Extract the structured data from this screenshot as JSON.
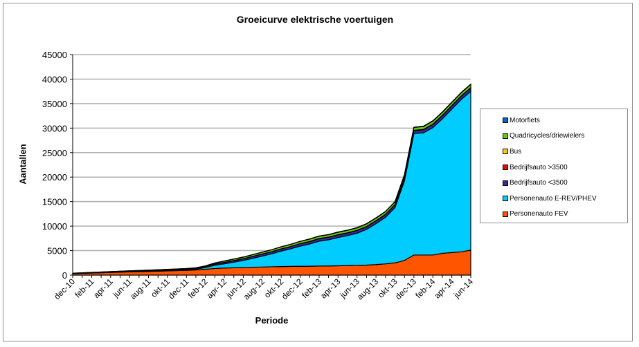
{
  "chart_data": {
    "type": "area",
    "stacked": true,
    "title": "Groeicurve elektrische voertuigen",
    "xlabel": "Periode",
    "ylabel": "Aantallen",
    "ylim": [
      0,
      45000
    ],
    "yticks": [
      0,
      5000,
      10000,
      15000,
      20000,
      25000,
      30000,
      35000,
      40000,
      45000
    ],
    "grid": "horizontal",
    "legend_position": "right",
    "categories": [
      "dec-10",
      "jan-11",
      "feb-11",
      "mrt-11",
      "apr-11",
      "mei-11",
      "jun-11",
      "jul-11",
      "aug-11",
      "sep-11",
      "okt-11",
      "nov-11",
      "dec-11",
      "jan-12",
      "feb-12",
      "mrt-12",
      "apr-12",
      "mei-12",
      "jun-12",
      "jul-12",
      "aug-12",
      "sep-12",
      "okt-12",
      "nov-12",
      "dec-12",
      "jan-13",
      "feb-13",
      "mrt-13",
      "apr-13",
      "mei-13",
      "jun-13",
      "jul-13",
      "aug-13",
      "sep-13",
      "okt-13",
      "nov-13",
      "dec-13",
      "jan-14",
      "feb-14",
      "mrt-14",
      "apr-14",
      "mei-14",
      "jun-14"
    ],
    "tick_labels": [
      "dec-10",
      "feb-11",
      "apr-11",
      "jun-11",
      "aug-11",
      "okt-11",
      "dec-11",
      "feb-12",
      "apr-12",
      "jun-12",
      "aug-12",
      "okt-12",
      "dec-12",
      "feb-13",
      "apr-13",
      "jun-13",
      "aug-13",
      "okt-13",
      "dec-13",
      "feb-14",
      "apr-14",
      "jun-14"
    ],
    "series": [
      {
        "name": "Personenauto FEV",
        "color": "#FF5500",
        "values": [
          300,
          360,
          420,
          480,
          540,
          600,
          660,
          710,
          760,
          810,
          860,
          910,
          960,
          1050,
          1200,
          1350,
          1450,
          1500,
          1550,
          1600,
          1650,
          1700,
          1750,
          1780,
          1800,
          1820,
          1850,
          1870,
          1900,
          1950,
          2000,
          2050,
          2150,
          2300,
          2500,
          3000,
          4100,
          4100,
          4100,
          4450,
          4600,
          4750,
          5100
        ]
      },
      {
        "name": "Personenauto E-REV/PHEV",
        "color": "#00CCFF",
        "values": [
          10,
          20,
          30,
          40,
          50,
          60,
          70,
          80,
          90,
          110,
          130,
          150,
          180,
          165,
          345,
          675,
          855,
          1145,
          1435,
          1835,
          2235,
          2645,
          3155,
          3585,
          4125,
          4530,
          5080,
          5340,
          5790,
          6120,
          6550,
          7280,
          8360,
          9490,
          11270,
          16230,
          24790,
          24930,
          26010,
          27440,
          29270,
          31100,
          32410
        ]
      },
      {
        "name": "Bedrijfsauto <3500",
        "color": "#3A2A99",
        "values": [
          30,
          35,
          40,
          45,
          50,
          55,
          60,
          65,
          70,
          75,
          80,
          85,
          90,
          110,
          150,
          220,
          280,
          310,
          340,
          370,
          400,
          420,
          440,
          460,
          480,
          490,
          500,
          510,
          520,
          530,
          540,
          550,
          560,
          570,
          580,
          600,
          620,
          630,
          640,
          650,
          660,
          670,
          690
        ]
      },
      {
        "name": "Bedrijfsauto >3500",
        "color": "#FF0000",
        "values": [
          5,
          5,
          5,
          5,
          5,
          5,
          5,
          5,
          5,
          5,
          5,
          5,
          5,
          10,
          10,
          10,
          10,
          10,
          10,
          10,
          10,
          10,
          10,
          10,
          10,
          20,
          20,
          20,
          20,
          20,
          20,
          20,
          20,
          20,
          20,
          20,
          20,
          30,
          30,
          30,
          30,
          30,
          30
        ]
      },
      {
        "name": "Bus",
        "color": "#FFCC00",
        "values": [
          5,
          5,
          5,
          5,
          5,
          5,
          5,
          5,
          5,
          5,
          5,
          5,
          5,
          15,
          15,
          15,
          15,
          15,
          15,
          15,
          15,
          15,
          15,
          15,
          15,
          30,
          30,
          30,
          30,
          30,
          30,
          30,
          30,
          30,
          30,
          30,
          30,
          40,
          40,
          40,
          40,
          40,
          40
        ]
      },
      {
        "name": "Quadricycles/driewielers",
        "color": "#66CC00",
        "values": [
          40,
          45,
          50,
          55,
          60,
          65,
          70,
          75,
          80,
          85,
          90,
          95,
          100,
          120,
          150,
          200,
          260,
          290,
          320,
          340,
          360,
          380,
          400,
          420,
          440,
          450,
          460,
          470,
          480,
          490,
          500,
          510,
          520,
          530,
          540,
          560,
          580,
          590,
          600,
          610,
          620,
          630,
          650
        ]
      },
      {
        "name": "Motorfiets",
        "color": "#0066CC",
        "values": [
          10,
          10,
          10,
          10,
          10,
          10,
          10,
          10,
          10,
          10,
          10,
          10,
          10,
          30,
          30,
          30,
          30,
          30,
          30,
          30,
          30,
          30,
          30,
          30,
          30,
          60,
          60,
          60,
          60,
          60,
          60,
          60,
          60,
          60,
          60,
          60,
          60,
          80,
          80,
          80,
          80,
          80,
          80
        ]
      }
    ],
    "legend_order": [
      "Motorfiets",
      "Quadricycles/driewielers",
      "Bus",
      "Bedrijfsauto >3500",
      "Bedrijfsauto <3500",
      "Personenauto E-REV/PHEV",
      "Personenauto FEV"
    ]
  }
}
